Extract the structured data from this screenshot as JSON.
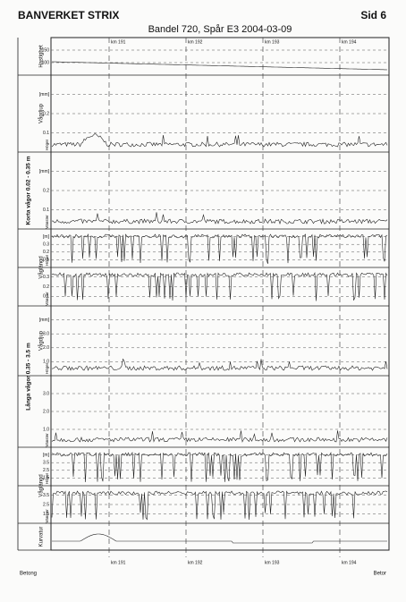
{
  "header": {
    "title": "BANVERKET STRIX",
    "page": "Sid 6"
  },
  "chart_title": "Bandel 720, Spår E3  2004-03-09",
  "km_labels_top": [
    "km 191",
    "km 192",
    "km 193",
    "km 194"
  ],
  "km_labels_bottom": [
    "km 191",
    "km 192",
    "km 193",
    "km 194"
  ],
  "group_labels": {
    "short": "Korta vågor 0.02 - 0.35 m",
    "long": "Långa vågor 0.35 - 3.5 m"
  },
  "panels": [
    {
      "label": "Hastighet",
      "ticks": [
        "150",
        "100"
      ]
    },
    {
      "label": "Vågdjup",
      "side": "Höger",
      "ticks": [
        "[mm]",
        "0.2",
        "0.1"
      ]
    },
    {
      "side": "Vänster",
      "ticks": [
        "[mm]",
        "0.2",
        "0.1"
      ]
    },
    {
      "label": "Våglängd",
      "side": "Höger",
      "ticks": [
        "[m]",
        "0.3",
        "0.2",
        "0.1"
      ]
    },
    {
      "side": "Vänster",
      "ticks": [
        "0.3",
        "0.2",
        "0.1"
      ]
    },
    {
      "label": "Vågdjup",
      "side": "Höger",
      "ticks": [
        "[mm]",
        "3.0",
        "2.0",
        "1.0"
      ]
    },
    {
      "side": "Vänster",
      "ticks": [
        "3.0",
        "2.0",
        "1.0"
      ]
    },
    {
      "label": "Våglängd",
      "side": "Höger",
      "ticks": [
        "[m]",
        "3.5",
        "2.5",
        "1.5"
      ]
    },
    {
      "side": "Vänster",
      "ticks": [
        "3.5",
        "2.5",
        "1.5"
      ]
    },
    {
      "label": "Kurvatur",
      "ticks": []
    }
  ],
  "footer": {
    "left": "Betong",
    "right": "Betor"
  }
}
